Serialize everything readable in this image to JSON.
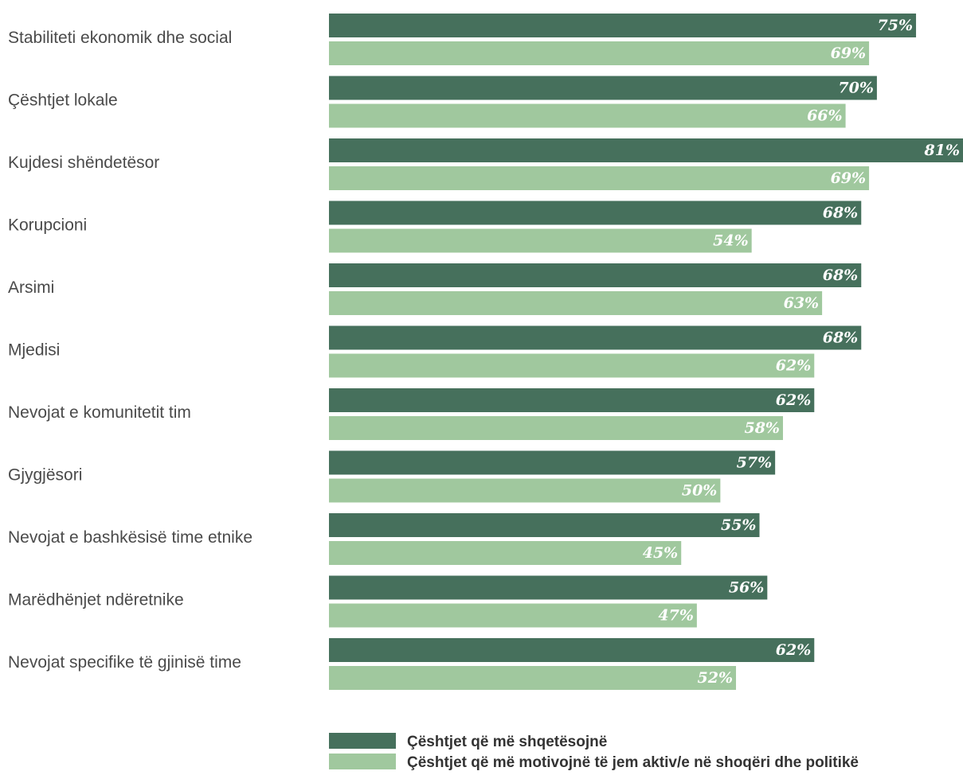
{
  "chart_data": {
    "type": "bar",
    "orientation": "horizontal",
    "categories": [
      "Stabiliteti ekonomik dhe social",
      "Çështjet lokale",
      "Kujdesi shëndetësor",
      "Korupcioni",
      "Arsimi",
      "Mjedisi",
      "Nevojat e komunitetit tim",
      "Gjygjësori",
      "Nevojat e bashkësisë time etnike",
      "Marëdhënjet ndëretnike",
      "Nevojat specifike të gjinisë time"
    ],
    "series": [
      {
        "name": "Çështjet që më shqetësojnë",
        "color": "#46705c",
        "values": [
          75,
          70,
          81,
          68,
          68,
          68,
          62,
          57,
          55,
          56,
          62
        ],
        "labels": [
          "75%",
          "70%",
          "81%",
          "68%",
          "68%",
          "68%",
          "62%",
          "57%",
          "55%",
          "56%",
          "62%"
        ]
      },
      {
        "name": "Çështjet që më motivojnë të jem aktiv/e në shoqëri dhe politikë",
        "color": "#a0c89e",
        "values": [
          69,
          66,
          69,
          54,
          63,
          62,
          58,
          50,
          45,
          47,
          52
        ],
        "labels": [
          "69%",
          "66%",
          "69%",
          "54%",
          "63%",
          "62%",
          "58%",
          "50%",
          "45%",
          "47%",
          "52%"
        ]
      }
    ],
    "value_suffix": "%",
    "xlim": [
      0,
      81
    ],
    "grid": false,
    "legend": "bottom"
  }
}
